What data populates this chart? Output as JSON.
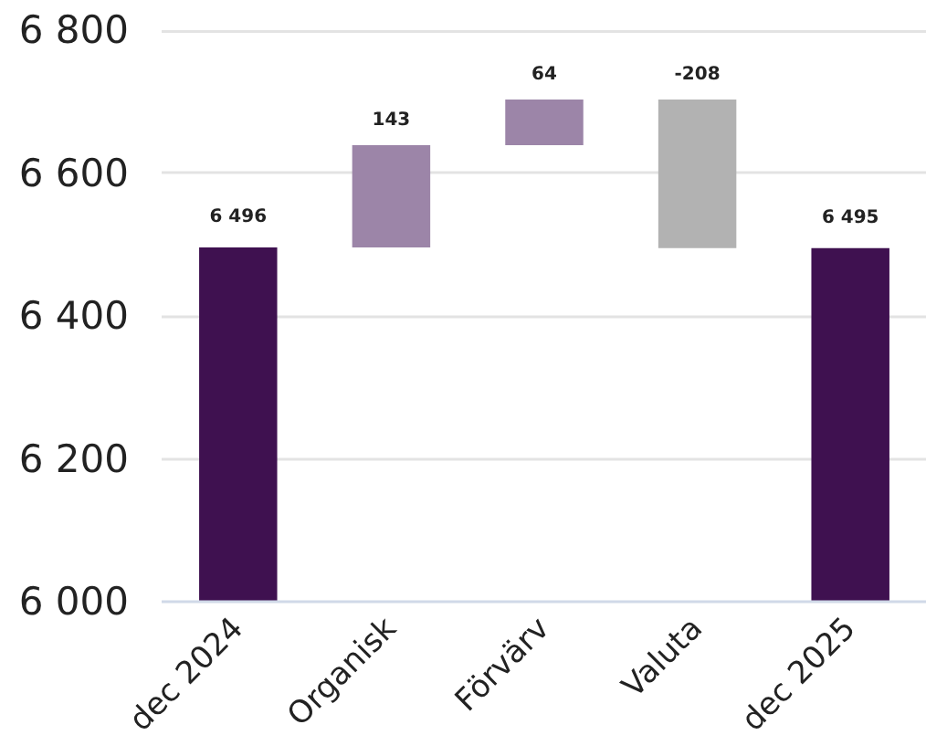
{
  "chart_data": {
    "type": "bar",
    "categories": [
      "dec 2024",
      "Organisk",
      "Förvärv",
      "Valuta",
      "dec 2025"
    ],
    "values": [
      6496,
      143,
      64,
      -208,
      6495
    ],
    "base": [
      null,
      6496,
      6639,
      6703,
      null
    ],
    "colors": [
      "#3f1150",
      "#9c85a8",
      "#9c85a8",
      "#b2b2b2",
      "#3f1150"
    ],
    "value_labels": [
      "6 496",
      "143",
      "64",
      "-208",
      "6 495"
    ],
    "ylim": [
      6000,
      6800
    ],
    "yticks": [
      {
        "value": 6000,
        "label": "6 000"
      },
      {
        "value": 6200,
        "label": "6 200"
      },
      {
        "value": 6400,
        "label": "6 400"
      },
      {
        "value": 6600,
        "label": "6 600"
      },
      {
        "value": 6800,
        "label": "6 800"
      }
    ],
    "grid": "y"
  }
}
